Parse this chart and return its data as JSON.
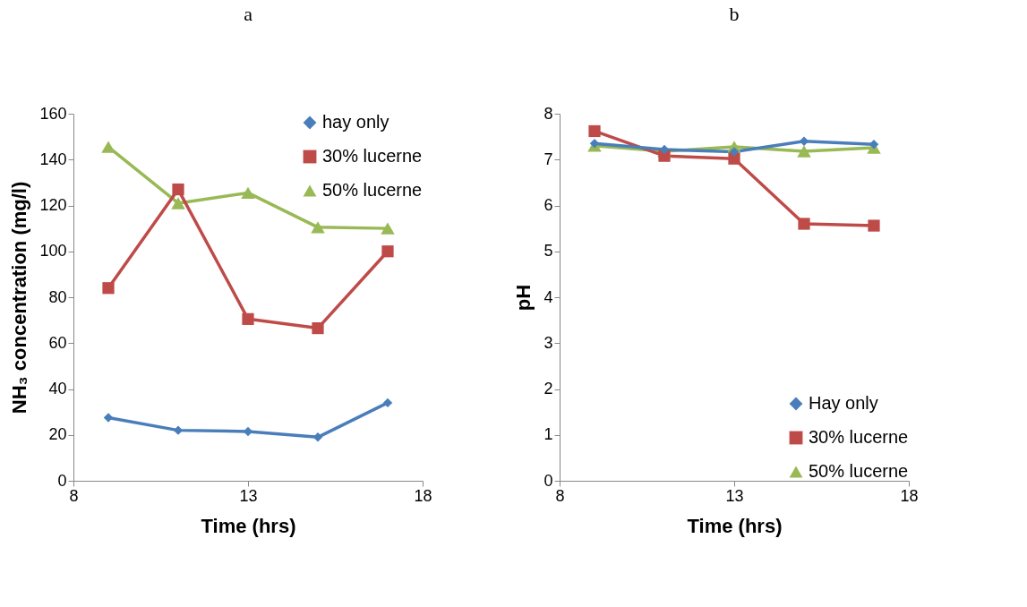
{
  "chart_data": [
    {
      "type": "line",
      "title": "a",
      "xlabel": "Time  (hrs)",
      "ylabel": "NH₃ concentration (mg/l)",
      "x": [
        9,
        11,
        13,
        15,
        17
      ],
      "xlim": [
        8,
        18
      ],
      "xticks": [
        8,
        13,
        18
      ],
      "ylim": [
        0,
        160
      ],
      "yticks": [
        0,
        20,
        40,
        60,
        80,
        100,
        120,
        140,
        160
      ],
      "grid": false,
      "legend": "top right",
      "series": [
        {
          "name": "hay only",
          "color": "#4a7ebb",
          "marker": "diamond",
          "values": [
            27.5,
            22,
            21.5,
            19,
            34
          ]
        },
        {
          "name": "30% lucerne",
          "color": "#be4b48",
          "marker": "square",
          "values": [
            84,
            127,
            70.5,
            66.5,
            100
          ]
        },
        {
          "name": "50% lucerne",
          "color": "#98b954",
          "marker": "triangle",
          "values": [
            145.5,
            121,
            125.5,
            110.5,
            110
          ]
        }
      ]
    },
    {
      "type": "line",
      "title": "b",
      "xlabel": "Time (hrs)",
      "ylabel": "pH",
      "x": [
        9,
        11,
        13,
        15,
        17
      ],
      "xlim": [
        8,
        18
      ],
      "xticks": [
        8,
        13,
        18
      ],
      "ylim": [
        0,
        8
      ],
      "yticks": [
        0,
        1,
        2,
        3,
        4,
        5,
        6,
        7,
        8
      ],
      "grid": false,
      "legend": "bottom right",
      "series": [
        {
          "name": "Hay only",
          "color": "#4a7ebb",
          "marker": "diamond",
          "values": [
            7.35,
            7.22,
            7.17,
            7.4,
            7.33
          ]
        },
        {
          "name": "30% lucerne",
          "color": "#be4b48",
          "marker": "square",
          "values": [
            7.62,
            7.08,
            7.02,
            5.6,
            5.56
          ]
        },
        {
          "name": "50% lucerne",
          "color": "#98b954",
          "marker": "triangle",
          "values": [
            7.3,
            7.18,
            7.28,
            7.18,
            7.26
          ]
        }
      ]
    }
  ]
}
